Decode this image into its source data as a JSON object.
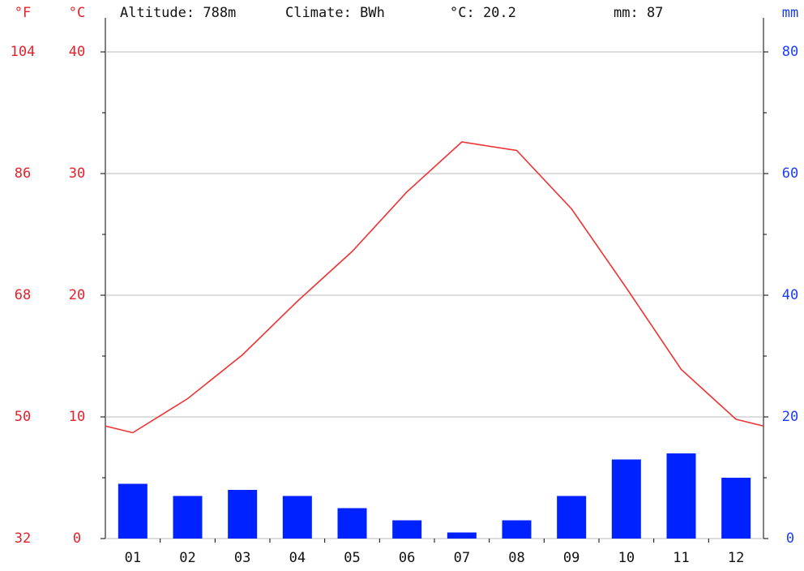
{
  "chart_data": {
    "type": "bar",
    "annotations": [
      "Altitude: 788m",
      "Climate: BWh",
      "°C: 20.2",
      "mm: 87"
    ],
    "ylabel": "°C",
    "yflabel": "°F",
    "y2label": "mm",
    "categories": [
      "01",
      "02",
      "03",
      "04",
      "05",
      "06",
      "07",
      "08",
      "09",
      "10",
      "11",
      "12"
    ],
    "series": [
      {
        "name": "°C",
        "type": "line",
        "axis": "y",
        "color": "#ee3333",
        "values": [
          8.7,
          11.5,
          15.1,
          19.5,
          23.6,
          28.5,
          32.6,
          31.9,
          27.1,
          20.6,
          13.9,
          9.8
        ]
      },
      {
        "name": "mm",
        "type": "bar",
        "axis": "y2",
        "color": "#0022ff",
        "values": [
          9,
          7,
          8,
          7,
          5,
          3,
          1,
          3,
          7,
          13,
          14,
          10
        ]
      }
    ],
    "ylim": [
      0,
      40
    ],
    "yticks": [
      0,
      10,
      20,
      30,
      40
    ],
    "yminorticks": [
      5,
      15,
      25,
      35
    ],
    "yfticks": [
      {
        "value": 0,
        "label": "32"
      },
      {
        "value": 10,
        "label": "50"
      },
      {
        "value": 20,
        "label": "68"
      },
      {
        "value": 30,
        "label": "86"
      },
      {
        "value": 40,
        "label": "104"
      }
    ],
    "y2lim": [
      0,
      80
    ],
    "y2ticks": [
      0,
      20,
      40,
      60,
      80
    ],
    "y2minorticks": [
      10,
      30,
      50,
      70
    ],
    "grid": true
  }
}
